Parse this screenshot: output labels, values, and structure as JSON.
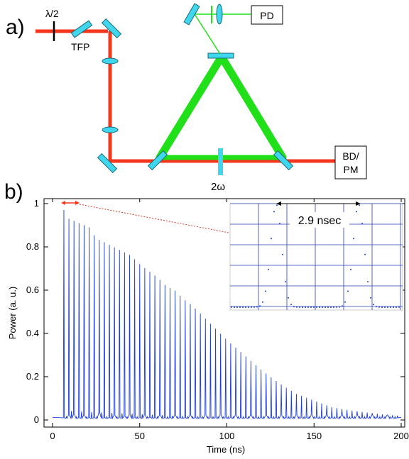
{
  "panel_a": {
    "label": "a)",
    "waveplate_label": "λ/2",
    "tfp_label": "TFP",
    "pd_label": "PD",
    "bd_label_line1": "BD/",
    "bd_label_line2": "PM",
    "shg_label": "2ω"
  },
  "panel_b": {
    "label": "b)",
    "inset_annotation": "2.9 nsec"
  },
  "colors": {
    "red_beam": "#f4361e",
    "green_beam": "#21e01a",
    "optic": "#3fd6ee",
    "trace": "#1f3fd8",
    "inset_grid": "#2a3db5"
  },
  "chart_data": {
    "type": "line",
    "title": "",
    "xlabel": "Time (ns)",
    "ylabel": "Power (a. u.)",
    "xlim": [
      0,
      200
    ],
    "ylim": [
      0,
      1
    ],
    "x_ticks": [
      "0",
      "50",
      "100",
      "150",
      "200"
    ],
    "y_ticks": [
      "0",
      "0.2",
      "0.4",
      "0.6",
      "0.8",
      "1"
    ],
    "pulse_period_ns": 2.9,
    "first_pulse_time_ns": 6.5,
    "peak_envelope": {
      "t_ns": [
        6.5,
        9.4,
        12.3,
        15.2,
        18.1,
        21,
        25,
        30,
        35,
        40,
        45,
        50,
        55,
        60,
        65,
        70,
        75,
        80,
        90,
        100,
        110,
        120,
        130,
        140,
        150,
        160,
        170,
        180,
        190,
        198
      ],
      "power": [
        0.97,
        0.93,
        0.92,
        0.91,
        0.9,
        0.89,
        0.84,
        0.82,
        0.8,
        0.78,
        0.76,
        0.72,
        0.69,
        0.66,
        0.62,
        0.6,
        0.56,
        0.53,
        0.45,
        0.37,
        0.3,
        0.23,
        0.17,
        0.12,
        0.09,
        0.06,
        0.045,
        0.035,
        0.025,
        0.02
      ]
    },
    "grid": false,
    "inset": {
      "type": "scatter",
      "description_free": true,
      "peak_separation_ns": 2.9,
      "grid": true
    }
  }
}
